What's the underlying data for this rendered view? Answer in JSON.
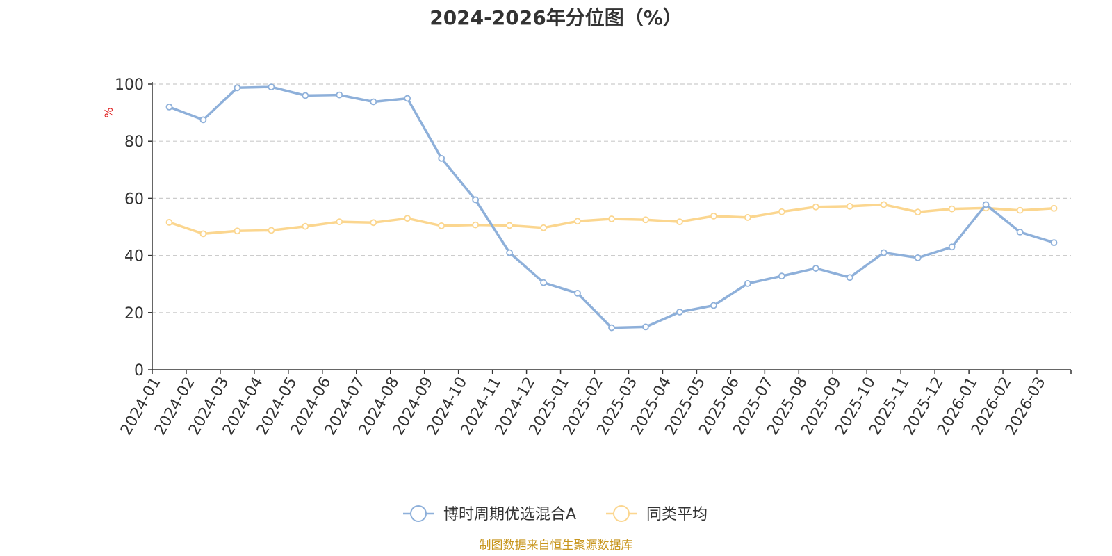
{
  "chart_data": {
    "type": "line",
    "title": "2024-2026年分位图（%）",
    "ylabel": "%",
    "xlabel": "",
    "ylim": [
      0,
      100
    ],
    "yticks": [
      0,
      20,
      40,
      60,
      80,
      100
    ],
    "grid": true,
    "legend_position": "bottom-center",
    "categories": [
      "2024-01",
      "2024-02",
      "2024-03",
      "2024-04",
      "2024-05",
      "2024-06",
      "2024-07",
      "2024-08",
      "2024-09",
      "2024-10",
      "2024-11",
      "2024-12",
      "2025-01",
      "2025-02",
      "2025-03",
      "2025-04",
      "2025-05",
      "2025-06",
      "2025-07",
      "2025-08",
      "2025-09",
      "2025-10",
      "2025-11",
      "2025-12",
      "2026-01",
      "2026-02",
      "2026-03"
    ],
    "series": [
      {
        "name": "博时周期优选混合A",
        "color": "#8eb0da",
        "values": [
          92,
          87.5,
          98.7,
          99,
          96,
          96.2,
          93.8,
          95,
          74,
          59.5,
          41,
          30.5,
          26.8,
          14.7,
          15,
          20.2,
          22.5,
          30.2,
          32.8,
          35.5,
          32.3,
          41,
          39.2,
          43,
          57.8,
          48.2,
          44.5
        ]
      },
      {
        "name": "同类平均",
        "color": "#fbd68f",
        "values": [
          51.6,
          47.6,
          48.6,
          48.8,
          50.2,
          51.8,
          51.5,
          53,
          50.4,
          50.7,
          50.5,
          49.7,
          52,
          52.8,
          52.5,
          51.8,
          53.8,
          53.3,
          55.3,
          57,
          57.2,
          57.8,
          55.2,
          56.3,
          56.6,
          55.8,
          56.5
        ]
      }
    ],
    "source": "制图数据来自恒生聚源数据库"
  },
  "colors": {
    "axis": "#333333",
    "grid": "#cccccc",
    "ylabel": "#e02020",
    "source": "#c8961e"
  }
}
